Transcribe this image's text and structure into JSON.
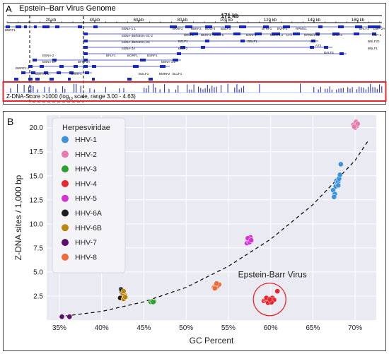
{
  "panel_a": {
    "label": "A",
    "title": "Epstein–Barr Virus Genome",
    "length_label": "171 kb",
    "ruler_ticks": [
      "20 kb",
      "40 kb",
      "60 kb",
      "80 kb",
      "100 kb",
      "120 kb",
      "140 kb",
      "160 kb"
    ],
    "ruler_positions_kb": [
      20,
      40,
      60,
      80,
      100,
      120,
      140,
      160
    ],
    "genome_kb": 171,
    "gene_labels": [
      "BNRF1",
      "EBNA-1.1",
      "EBNA-3B/EBNA-3C-2",
      "EBNA-3B/EBNA-3C",
      "EBNA-3A",
      "EBNA-2",
      "EBNA-LP",
      "BWRF1.2",
      "BWRF1.5",
      "BWRF1",
      "BKRF2",
      "BBRF2",
      "BOLF4",
      "BDLF3",
      "BTRF1",
      "BVRF2",
      "RPMS1",
      "BALF2",
      "LMP-2A",
      "LMP-1",
      "BRLF1",
      "BKRF3",
      "BGLF5",
      "BBLF1",
      "BURF1.2",
      "BXRF1",
      "LF3",
      "RPMS1-31",
      "BALF3",
      "BNLF2b",
      "BZLF1",
      "BLLF2",
      "LF1",
      "A73",
      "BALF4",
      "BNLF1",
      "BFLF1",
      "BORF1",
      "BSRF1",
      "BFRF1A",
      "EBNA-1.2",
      "BOLF1",
      "BMRF2",
      "BLLF1"
    ],
    "track_label": "Z-DNA-Score >1000 (log",
    "track_label_sub": "10",
    "track_label_end": " scale, range 3.00 - 4.63)"
  },
  "panel_b": {
    "label": "B",
    "chart_data": {
      "type": "scatter",
      "xlabel": "GC Percent",
      "ylabel": "Z-DNA sites / 1,000 bp",
      "xlim": [
        33.5,
        72.5
      ],
      "ylim": [
        0,
        21.3
      ],
      "x_ticks": [
        35,
        40,
        45,
        50,
        55,
        60,
        65,
        70
      ],
      "x_tick_labels": [
        "35%",
        "40%",
        "45%",
        "50%",
        "55%",
        "60%",
        "65%",
        "70%"
      ],
      "y_ticks": [
        2.5,
        5.0,
        7.5,
        10.0,
        12.5,
        15.0,
        17.5,
        20.0
      ],
      "y_tick_labels": [
        "2.5",
        "5.0",
        "7.5",
        "10.0",
        "12.5",
        "15.0",
        "17.5",
        "20.0"
      ],
      "grid": true,
      "legend_title": "Herpesviridae",
      "legend_position": "top-left",
      "annotation": "Epstein-Barr Virus",
      "series": [
        {
          "name": "HHV-1",
          "color": "#3b93dc",
          "points": [
            [
              67.4,
              13.5
            ],
            [
              67.6,
              13.1
            ],
            [
              67.5,
              12.8
            ],
            [
              67.8,
              14.5
            ],
            [
              67.9,
              14.2
            ],
            [
              68.0,
              14.4
            ],
            [
              68.1,
              14.7
            ],
            [
              68.2,
              15.1
            ],
            [
              68.3,
              16.2
            ],
            [
              67.7,
              13.9
            ],
            [
              68.0,
              14.0
            ]
          ]
        },
        {
          "name": "HHV-2",
          "color": "#e77bb0",
          "points": [
            [
              69.8,
              20.3
            ],
            [
              70.0,
              20.0
            ],
            [
              70.1,
              20.6
            ],
            [
              70.2,
              20.2
            ],
            [
              70.3,
              20.4
            ],
            [
              69.9,
              20.1
            ]
          ]
        },
        {
          "name": "HHV-3",
          "color": "#2ca02c",
          "points": [
            [
              45.8,
              1.9
            ],
            [
              46.0,
              1.95
            ],
            [
              46.2,
              1.92
            ],
            [
              46.1,
              1.88
            ]
          ]
        },
        {
          "name": "HHV-4",
          "color": "#e8262d",
          "points": [
            [
              59.2,
              2.0
            ],
            [
              59.4,
              2.1
            ],
            [
              59.6,
              1.95
            ],
            [
              59.8,
              2.2
            ],
            [
              60.0,
              2.05
            ],
            [
              60.2,
              2.3
            ],
            [
              60.4,
              2.1
            ],
            [
              59.5,
              2.3
            ],
            [
              59.7,
              1.8
            ],
            [
              60.1,
              1.85
            ],
            [
              60.8,
              3.0
            ],
            [
              59.9,
              2.15
            ]
          ]
        },
        {
          "name": "HHV-5",
          "color": "#d333d3",
          "points": [
            [
              57.2,
              8.0
            ],
            [
              57.4,
              8.2
            ],
            [
              57.5,
              8.4
            ],
            [
              57.6,
              8.6
            ],
            [
              57.5,
              8.1
            ],
            [
              57.3,
              8.5
            ],
            [
              57.7,
              8.3
            ]
          ]
        },
        {
          "name": "HHV-6A",
          "color": "#1f1f1f",
          "points": [
            [
              42.3,
              3.2
            ],
            [
              42.4,
              2.9
            ],
            [
              42.5,
              2.6
            ],
            [
              42.2,
              2.3
            ],
            [
              42.4,
              3.1
            ]
          ]
        },
        {
          "name": "HHV-6B",
          "color": "#b8860b",
          "points": [
            [
              42.6,
              2.2
            ],
            [
              42.7,
              2.6
            ],
            [
              42.5,
              2.8
            ],
            [
              42.8,
              2.4
            ],
            [
              42.6,
              3.0
            ]
          ]
        },
        {
          "name": "HHV-7",
          "color": "#5a0f6e",
          "points": [
            [
              35.3,
              0.35
            ],
            [
              36.2,
              0.35
            ]
          ]
        },
        {
          "name": "HHV-8",
          "color": "#ee6a3a",
          "points": [
            [
              53.3,
              3.4
            ],
            [
              53.5,
              3.6
            ],
            [
              53.7,
              3.5
            ],
            [
              53.9,
              3.7
            ],
            [
              53.6,
              3.8
            ],
            [
              53.4,
              3.3
            ]
          ]
        }
      ],
      "trend": {
        "style": "dashed",
        "x": [
          35,
          40,
          45,
          50,
          55,
          60,
          65,
          70,
          71.5
        ],
        "y": [
          0.35,
          0.9,
          1.9,
          3.4,
          5.6,
          8.4,
          12.0,
          16.6,
          18.6
        ]
      }
    }
  }
}
